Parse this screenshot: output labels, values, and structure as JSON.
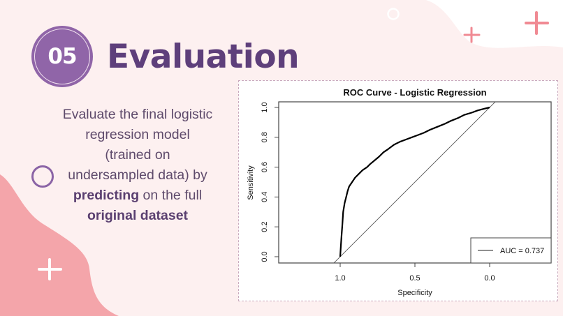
{
  "slide": {
    "section_number": "05",
    "title": "Evaluation",
    "description": {
      "line_parts": [
        {
          "text": "Evaluate the final logistic regression model (trained on undersampled data) by ",
          "bold": false
        },
        {
          "text": "predicting",
          "bold": true
        },
        {
          "text": " on the full ",
          "bold": false
        },
        {
          "text": "original dataset",
          "bold": true
        }
      ],
      "text_1": "Evaluate the final logistic",
      "text_2": "regression model",
      "text_3": "(trained on",
      "text_4": "undersampled data) by",
      "bold_1": "predicting",
      "text_5": " on the full",
      "bold_2": "original dataset"
    }
  },
  "colors": {
    "background": "#fdf0f0",
    "accent_purple": "#9065a8",
    "title_purple": "#5e3f7b",
    "blob_pink": "#f4a5aa",
    "plus_pink": "#f08a93"
  },
  "decorations": {
    "icons": [
      "plus-icon",
      "plus-icon",
      "plus-icon",
      "circle-outline-icon",
      "circle-outline-icon"
    ]
  },
  "chart_data": {
    "type": "line",
    "title": "ROC Curve - Logistic Regression",
    "xlabel": "Specificity",
    "ylabel": "Sensitivity",
    "x_reversed": true,
    "xlim": [
      1.0,
      0.0
    ],
    "ylim": [
      0.0,
      1.0
    ],
    "x_ticks": [
      "1.0",
      "0.5",
      "0.0"
    ],
    "y_ticks": [
      "0.0",
      "0.2",
      "0.4",
      "0.6",
      "0.8",
      "1.0"
    ],
    "grid": false,
    "legend_position": "bottom-right",
    "legend": [
      "AUC = 0.737"
    ],
    "auc": 0.737,
    "series": [
      {
        "name": "ROC",
        "x": [
          1.0,
          0.995,
          0.99,
          0.985,
          0.98,
          0.97,
          0.96,
          0.95,
          0.94,
          0.92,
          0.9,
          0.87,
          0.85,
          0.82,
          0.8,
          0.77,
          0.74,
          0.71,
          0.68,
          0.64,
          0.6,
          0.56,
          0.52,
          0.48,
          0.44,
          0.4,
          0.35,
          0.3,
          0.26,
          0.21,
          0.17,
          0.12,
          0.08,
          0.04,
          0.0
        ],
        "y": [
          0.0,
          0.08,
          0.15,
          0.22,
          0.3,
          0.36,
          0.4,
          0.44,
          0.47,
          0.5,
          0.53,
          0.56,
          0.58,
          0.6,
          0.62,
          0.645,
          0.67,
          0.7,
          0.72,
          0.75,
          0.77,
          0.785,
          0.8,
          0.815,
          0.83,
          0.85,
          0.87,
          0.89,
          0.91,
          0.93,
          0.95,
          0.965,
          0.98,
          0.99,
          1.0
        ]
      },
      {
        "name": "Reference diagonal",
        "x": [
          1.0,
          0.0
        ],
        "y": [
          0.0,
          1.0
        ]
      }
    ]
  }
}
